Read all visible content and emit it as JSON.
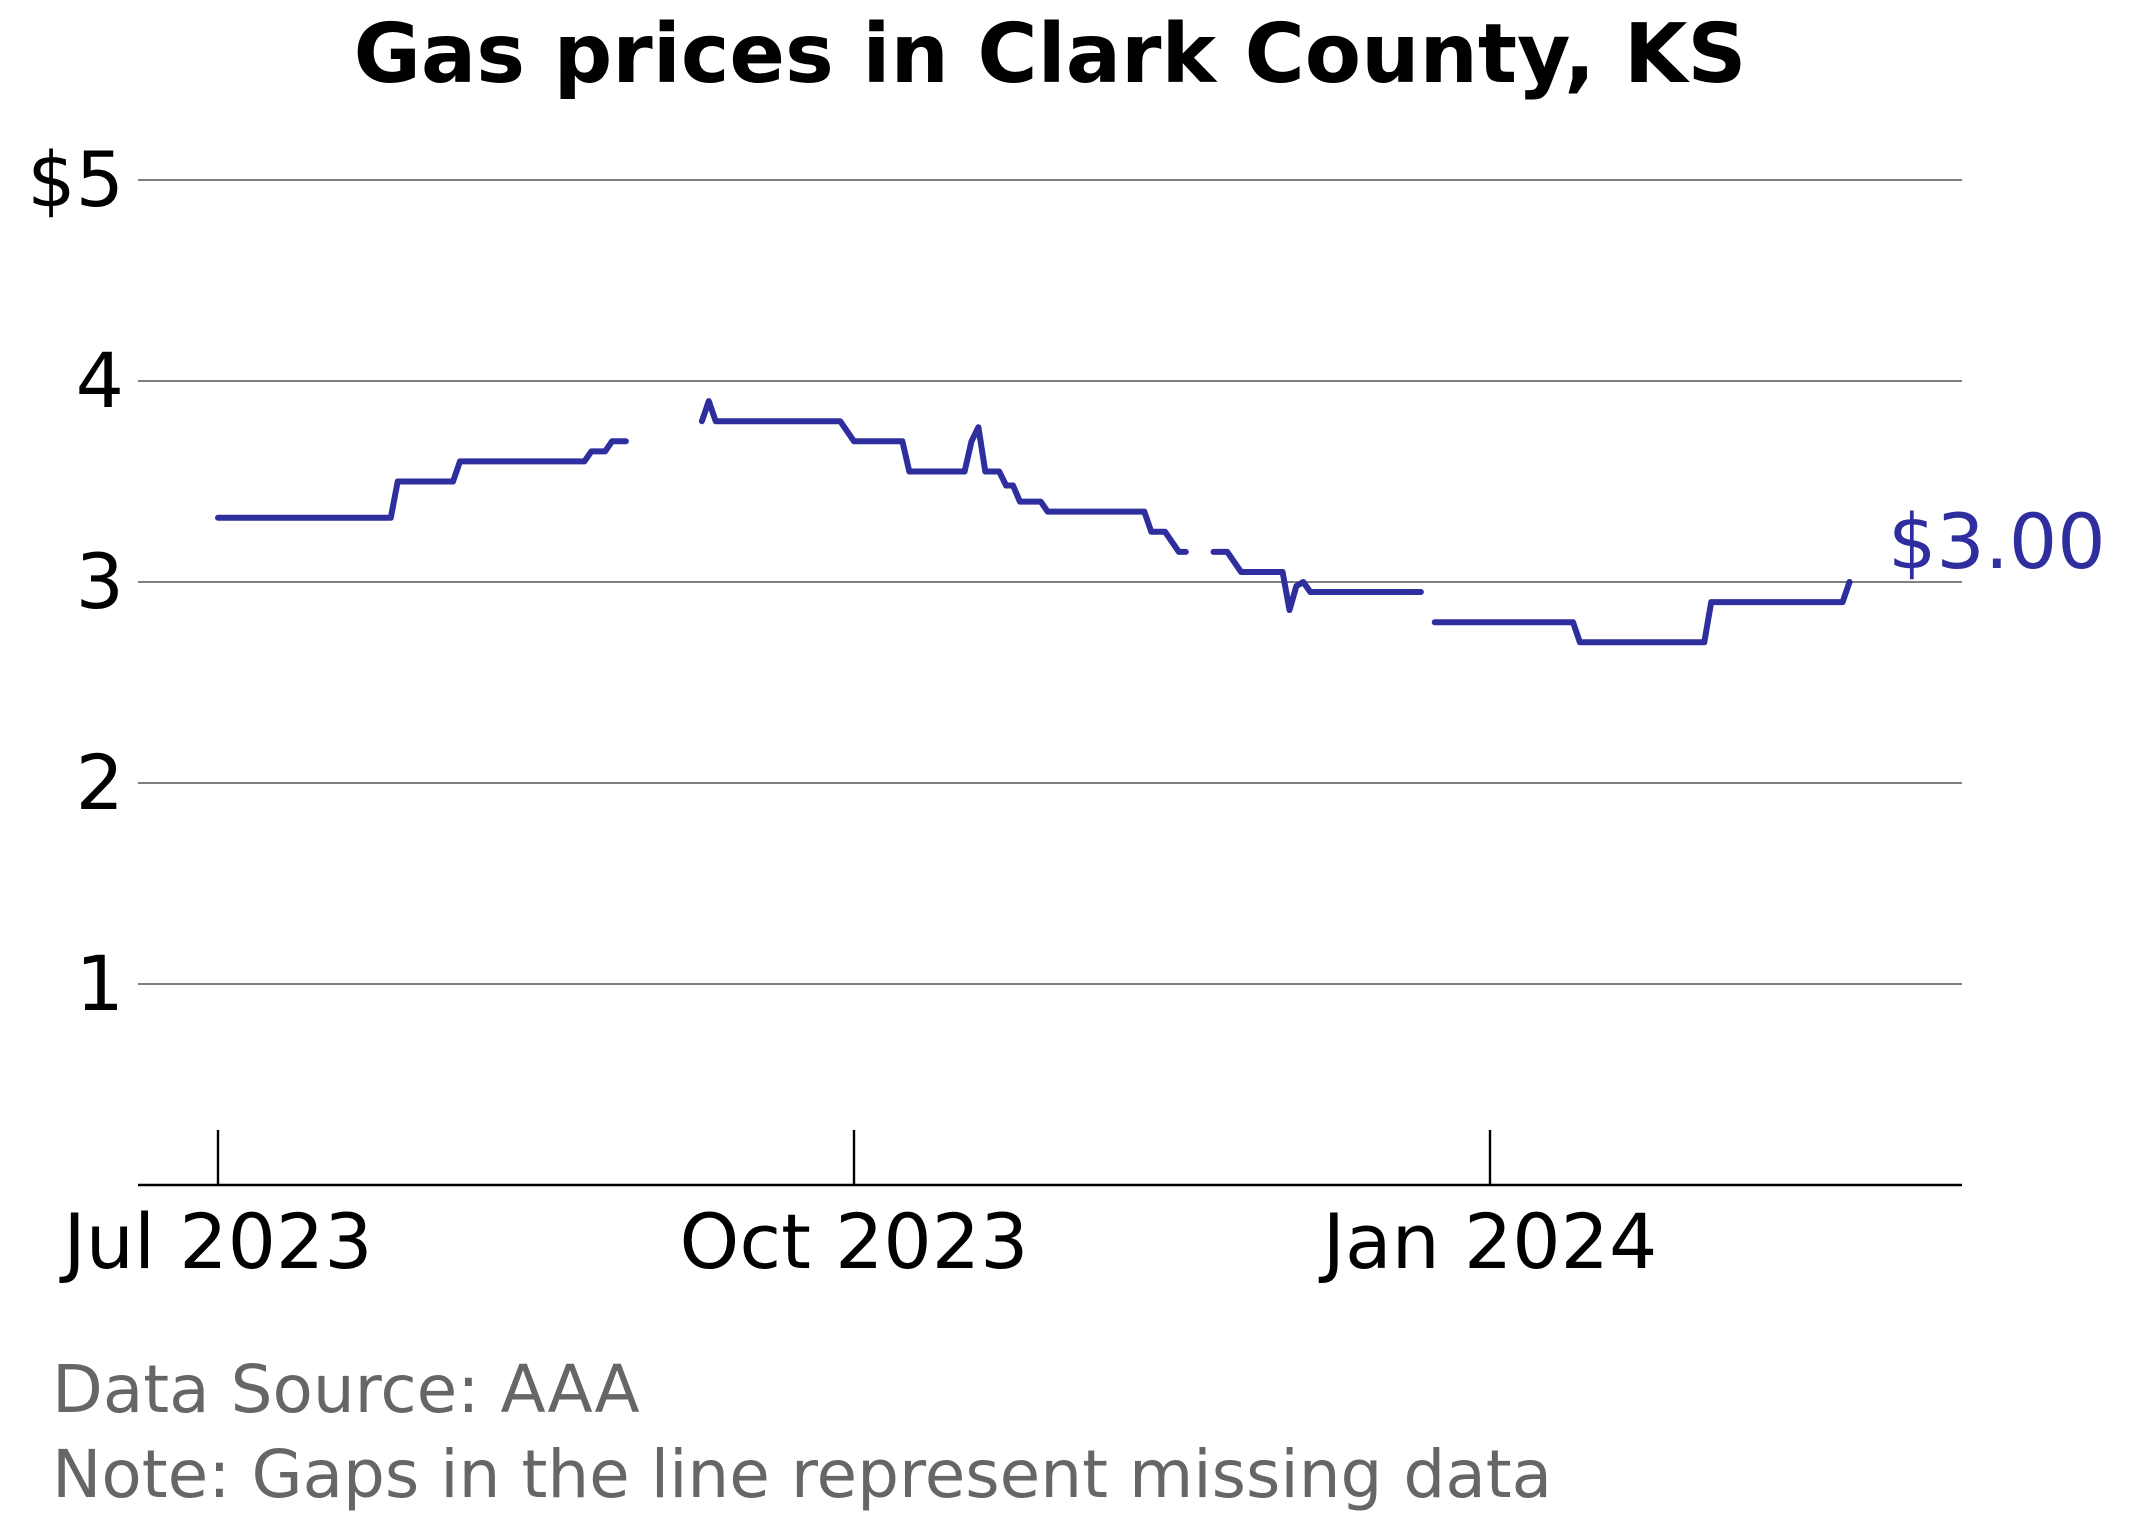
{
  "chart_data": {
    "type": "line",
    "title": "Gas prices in Clark County, KS",
    "xlabel": "",
    "ylabel": "",
    "ylim": [
      0,
      5.2
    ],
    "xlim": [
      "2023-06-24",
      "2024-03-18"
    ],
    "y_ticks": [
      {
        "value": 1,
        "label": "1"
      },
      {
        "value": 2,
        "label": "2"
      },
      {
        "value": 3,
        "label": "3"
      },
      {
        "value": 4,
        "label": "4"
      },
      {
        "value": 5,
        "label": "$5"
      }
    ],
    "x_ticks": [
      {
        "date": "2023-07-01",
        "label": "Jul 2023"
      },
      {
        "date": "2023-10-01",
        "label": "Oct 2023"
      },
      {
        "date": "2024-01-01",
        "label": "Jan 2024"
      }
    ],
    "grid": true,
    "line_color": "#2e2e9e",
    "end_label": "$3.00",
    "series": [
      {
        "segments": [
          [
            [
              "2023-07-01",
              3.32
            ],
            [
              "2023-07-26",
              3.32
            ],
            [
              "2023-07-27",
              3.5
            ],
            [
              "2023-08-04",
              3.5
            ],
            [
              "2023-08-05",
              3.6
            ],
            [
              "2023-08-23",
              3.6
            ],
            [
              "2023-08-24",
              3.65
            ],
            [
              "2023-08-26",
              3.65
            ],
            [
              "2023-08-27",
              3.7
            ],
            [
              "2023-08-29",
              3.7
            ]
          ],
          [
            [
              "2023-09-09",
              3.8
            ],
            [
              "2023-09-10",
              3.9
            ],
            [
              "2023-09-11",
              3.8
            ],
            [
              "2023-09-29",
              3.8
            ],
            [
              "2023-10-01",
              3.7
            ],
            [
              "2023-10-08",
              3.7
            ],
            [
              "2023-10-09",
              3.55
            ],
            [
              "2023-10-17",
              3.55
            ],
            [
              "2023-10-18",
              3.7
            ],
            [
              "2023-10-19",
              3.77
            ],
            [
              "2023-10-20",
              3.55
            ],
            [
              "2023-10-22",
              3.55
            ],
            [
              "2023-10-23",
              3.48
            ],
            [
              "2023-10-24",
              3.48
            ],
            [
              "2023-10-25",
              3.4
            ],
            [
              "2023-10-28",
              3.4
            ],
            [
              "2023-10-29",
              3.35
            ],
            [
              "2023-10-30",
              3.35
            ],
            [
              "2023-11-12",
              3.35
            ],
            [
              "2023-11-13",
              3.25
            ],
            [
              "2023-11-15",
              3.25
            ],
            [
              "2023-11-17",
              3.15
            ],
            [
              "2023-11-18",
              3.15
            ]
          ],
          [
            [
              "2023-11-22",
              3.15
            ],
            [
              "2023-11-24",
              3.15
            ],
            [
              "2023-11-26",
              3.05
            ],
            [
              "2023-12-02",
              3.05
            ],
            [
              "2023-12-03",
              2.86
            ],
            [
              "2023-12-04",
              2.98
            ],
            [
              "2023-12-05",
              3.0
            ],
            [
              "2023-12-06",
              2.95
            ],
            [
              "2023-12-22",
              2.95
            ]
          ],
          [
            [
              "2023-12-24",
              2.8
            ],
            [
              "2024-01-13",
              2.8
            ],
            [
              "2024-01-14",
              2.7
            ],
            [
              "2024-02-01",
              2.7
            ],
            [
              "2024-02-02",
              2.9
            ],
            [
              "2024-02-21",
              2.9
            ],
            [
              "2024-02-22",
              3.0
            ]
          ]
        ]
      }
    ],
    "footnotes": [
      "Data Source: AAA",
      "Note: Gaps in the line represent missing data"
    ]
  }
}
